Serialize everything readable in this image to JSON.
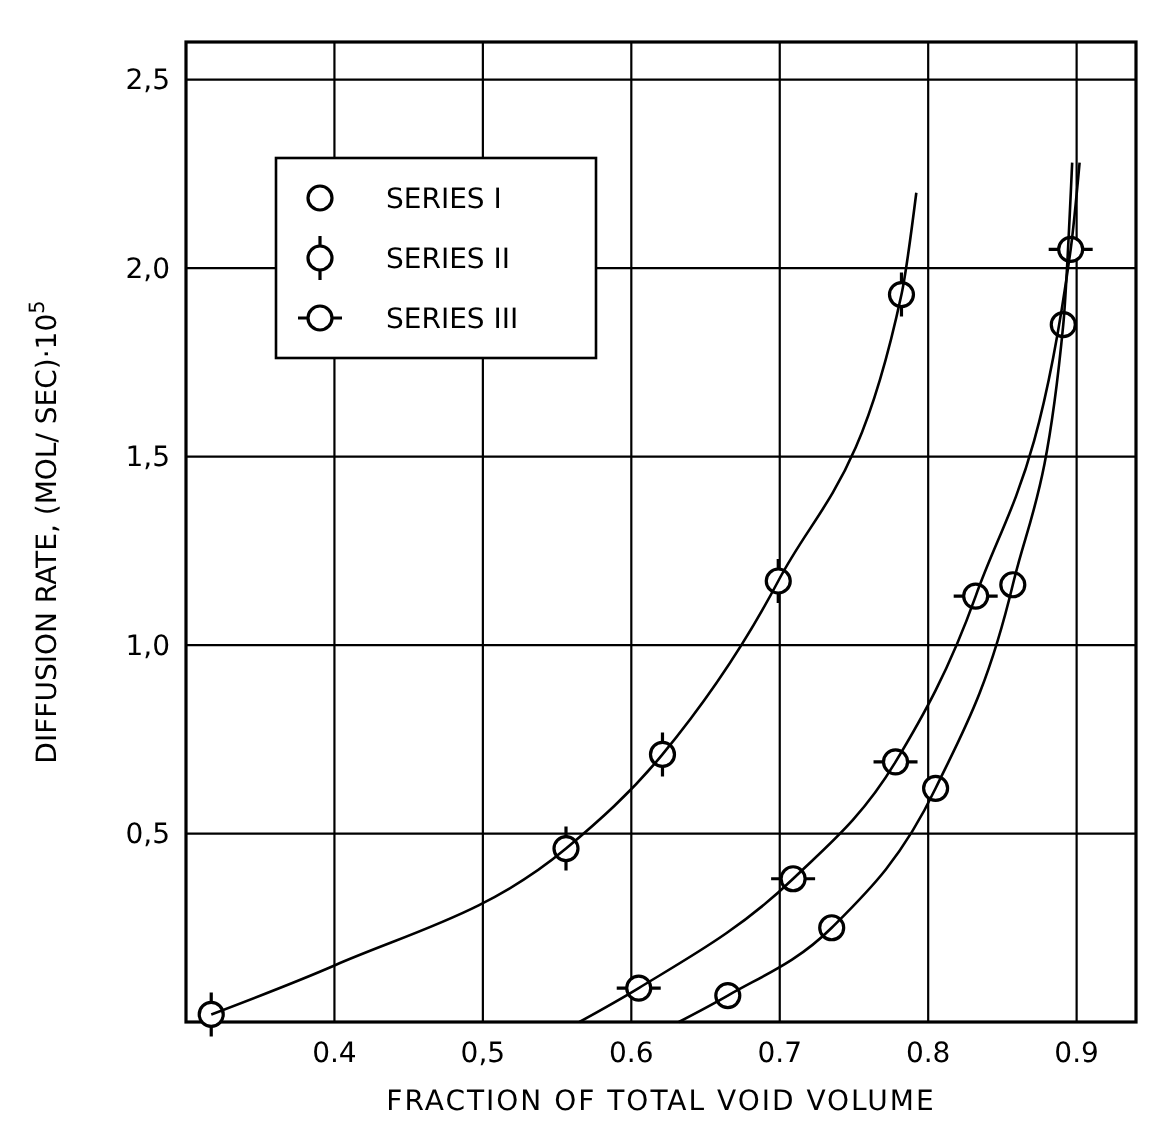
{
  "chart_data": {
    "type": "scatter",
    "xlabel": "FRACTION OF TOTAL VOID VOLUME",
    "ylabel": "DIFFUSION RATE, (MOL/ SEC)·10$^{5}$",
    "xlim": [
      0.3,
      0.94
    ],
    "ylim": [
      0,
      2.6
    ],
    "xticks": [
      0.4,
      {
        "value": 0.5,
        "label": "0,5"
      },
      0.6,
      0.7,
      0.8,
      0.9
    ],
    "yticks": [
      {
        "value": 0.5,
        "label": "0,5"
      },
      {
        "value": 1,
        "label": "1,0"
      },
      {
        "value": 1.5,
        "label": "1,5"
      },
      {
        "value": 2,
        "label": "2,0"
      },
      {
        "value": 2.5,
        "label": "2,5"
      }
    ],
    "grid": true,
    "legend": "top left",
    "marker": "circle",
    "series": [
      {
        "name": "SERIES I",
        "color": "#000000",
        "x": [
          0.665,
          0.735,
          0.805,
          0.857,
          0.891
        ],
        "values": [
          0.07,
          0.25,
          0.62,
          1.16,
          1.85
        ]
      },
      {
        "name": "SERIES II",
        "color": "#000000",
        "x": [
          0.317,
          0.556,
          0.621,
          0.699,
          0.782
        ],
        "values": [
          0.02,
          0.46,
          0.71,
          1.17,
          1.93
        ]
      },
      {
        "name": "SERIES III",
        "color": "#000000",
        "x": [
          0.605,
          0.709,
          0.778,
          0.832,
          0.896
        ],
        "values": [
          0.09,
          0.38,
          0.69,
          1.13,
          2.05
        ]
      },
      {
        "type": "line",
        "marker": "none",
        "color": "#000000",
        "x": [
          0.632,
          0.665,
          0.735,
          0.805,
          0.857,
          0.891,
          0.897
        ],
        "values": [
          0,
          0.07,
          0.25,
          0.62,
          1.16,
          1.85,
          2.28
        ]
      },
      {
        "type": "line",
        "marker": "none",
        "color": "#000000",
        "x": [
          0.317,
          0.4,
          0.556,
          0.621,
          0.699,
          0.782,
          0.792
        ],
        "values": [
          0.02,
          0.15,
          0.46,
          0.71,
          1.17,
          1.93,
          2.2
        ]
      },
      {
        "type": "line",
        "marker": "none",
        "color": "#000000",
        "x": [
          0.565,
          0.605,
          0.709,
          0.778,
          0.832,
          0.896,
          0.902
        ],
        "values": [
          0,
          0.09,
          0.38,
          0.69,
          1.13,
          2.05,
          2.28
        ]
      }
    ]
  }
}
